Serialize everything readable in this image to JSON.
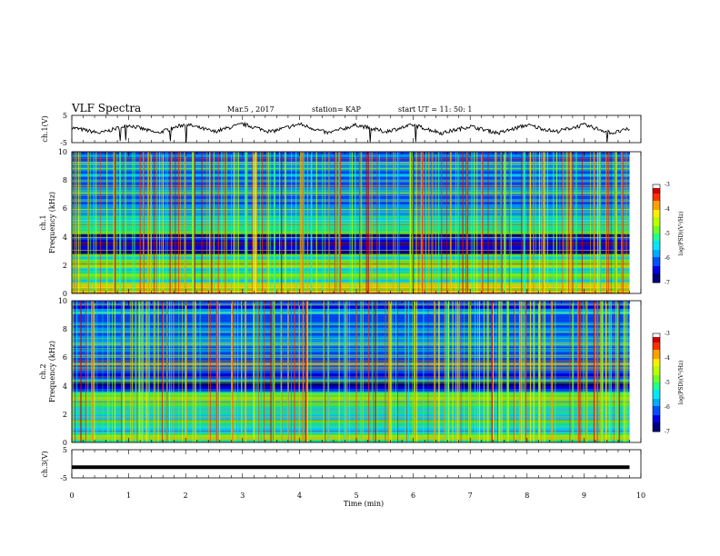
{
  "header": {
    "title": "VLF Spectra",
    "date": "Mar.5  , 2017",
    "station": "station= KAP",
    "start": "start  UT  =   11: 50: 1"
  },
  "colorbar": {
    "label": "log(PSD)(V²/Hz)",
    "ticks": [
      "-3",
      "-4",
      "-5",
      "-6",
      "-7"
    ],
    "colors": [
      "#00007a",
      "#0000e6",
      "#0050ff",
      "#00aaff",
      "#00e8ff",
      "#20ff90",
      "#70ff20",
      "#b8ff00",
      "#ffee00",
      "#ffa000",
      "#ff3000",
      "#d00000",
      "#ffffff"
    ]
  },
  "chart_data": [
    {
      "type": "line",
      "name": "ch1-waveform",
      "ylabel": "ch.1(V)",
      "ylim": [
        -5,
        5
      ],
      "yticks": [
        "5",
        "-5"
      ],
      "xlim": [
        0,
        10
      ],
      "description_values": {
        "x": [
          0,
          0.5,
          1,
          1.5,
          2,
          2.5,
          3,
          3.5,
          4,
          4.5,
          5,
          5.5,
          6,
          6.5,
          7,
          7.5,
          8,
          8.5,
          9,
          9.5,
          9.8
        ],
        "y": [
          0.5,
          -1.5,
          1.5,
          -1.5,
          1.8,
          -1.0,
          1.8,
          -1.0,
          1.8,
          -1.5,
          1.5,
          -1.0,
          1.5,
          -1.5,
          1.0,
          -1.5,
          1.5,
          -1.0,
          1.5,
          -1.5,
          0.0
        ]
      }
    },
    {
      "type": "heatmap",
      "name": "ch1-spectrogram",
      "ylabel": "ch.1",
      "ylabel2": "Frequency (kHz)",
      "ylim": [
        0,
        10
      ],
      "yticks": [
        "10",
        "8",
        "6",
        "4",
        "2",
        "0"
      ],
      "xlim": [
        0,
        10
      ],
      "zlim": [
        -7,
        -3
      ],
      "zlabel": "log(PSD)(V²/Hz)",
      "bands": [
        {
          "f_khz": [
            0.0,
            0.8
          ],
          "level": -4.5
        },
        {
          "f_khz": [
            0.8,
            2.8
          ],
          "level": -5.0
        },
        {
          "f_khz": [
            2.8,
            4.2
          ],
          "level": -6.6
        },
        {
          "f_khz": [
            4.2,
            5.5
          ],
          "level": -5.2
        },
        {
          "f_khz": [
            5.5,
            10.0
          ],
          "level": -6.0
        }
      ]
    },
    {
      "type": "heatmap",
      "name": "ch2-spectrogram",
      "ylabel": "ch.2",
      "ylabel2": "Frequency (kHz)",
      "ylim": [
        0,
        10
      ],
      "yticks": [
        "10",
        "8",
        "6",
        "4",
        "2",
        "0"
      ],
      "xlim": [
        0,
        10
      ],
      "zlim": [
        -7,
        -3
      ],
      "zlabel": "log(PSD)(V²/Hz)",
      "bands": [
        {
          "f_khz": [
            0.0,
            0.6
          ],
          "level": -5.0
        },
        {
          "f_khz": [
            0.6,
            3.0
          ],
          "level": -5.2
        },
        {
          "f_khz": [
            3.0,
            3.6
          ],
          "level": -4.8
        },
        {
          "f_khz": [
            3.6,
            4.3
          ],
          "level": -6.6
        },
        {
          "f_khz": [
            4.3,
            10.0
          ],
          "level": -6.0
        }
      ]
    },
    {
      "type": "line",
      "name": "ch3-waveform",
      "ylabel": "ch.3(V)",
      "ylim": [
        -5,
        5
      ],
      "yticks": [
        "5",
        "-5"
      ],
      "xlim": [
        0,
        10
      ],
      "xlabel": "Time (min)",
      "xticks": [
        "0",
        "1",
        "2",
        "3",
        "4",
        "5",
        "6",
        "7",
        "8",
        "9",
        "10"
      ],
      "x": [
        0,
        9.8
      ],
      "y": [
        -1.2,
        -1.2
      ]
    }
  ]
}
